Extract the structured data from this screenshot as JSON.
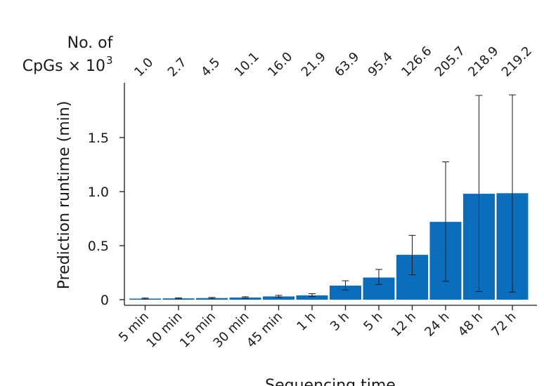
{
  "chart_data": {
    "type": "bar",
    "xlabel": "Sequencing time",
    "ylabel": "Prediction runtime (min)",
    "categories": [
      "5 min",
      "10 min",
      "15 min",
      "30 min",
      "45 min",
      "1 h",
      "3 h",
      "5 h",
      "12 h",
      "24 h",
      "48 h",
      "72 h"
    ],
    "values": [
      0.01,
      0.012,
      0.015,
      0.02,
      0.03,
      0.04,
      0.13,
      0.205,
      0.415,
      0.72,
      0.98,
      0.985
    ],
    "error_low": [
      0.005,
      0.007,
      0.009,
      0.014,
      0.022,
      0.03,
      0.09,
      0.14,
      0.23,
      0.17,
      0.075,
      0.07
    ],
    "error_high": [
      0.015,
      0.017,
      0.021,
      0.027,
      0.04,
      0.055,
      0.175,
      0.28,
      0.595,
      1.275,
      1.89,
      1.895
    ],
    "ylim": [
      0,
      1.95
    ],
    "yticks": [
      0,
      0.5,
      1.0,
      1.5
    ],
    "ytick_labels": [
      "0",
      "0.5",
      "1.0",
      "1.5"
    ],
    "top_axis_label": [
      "No. of",
      "CpGs × 10"
    ],
    "top_axis_label_superscript": "3",
    "top_axis_values": [
      "1.0",
      "2.7",
      "4.5",
      "10.1",
      "16.0",
      "21.9",
      "63.9",
      "95.4",
      "126.6",
      "205.7",
      "218.9",
      "219.2"
    ],
    "bar_color": "#0b6ebd",
    "grid": false
  }
}
